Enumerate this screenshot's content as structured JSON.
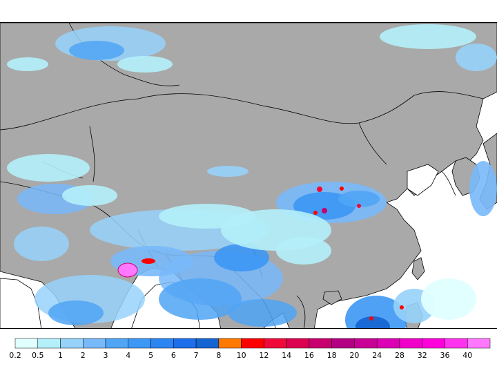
{
  "map": {
    "land_color": "#a9a9a9",
    "ocean_color": "#ffffff",
    "border_color": "#000000"
  },
  "legend": {
    "bins": [
      {
        "label": "0.2",
        "color": "#e0ffff"
      },
      {
        "label": "0.5",
        "color": "#b4f0fa"
      },
      {
        "label": "1",
        "color": "#96d2fa"
      },
      {
        "label": "2",
        "color": "#78b9fa"
      },
      {
        "label": "3",
        "color": "#50a5f5"
      },
      {
        "label": "4",
        "color": "#3c97f5"
      },
      {
        "label": "5",
        "color": "#2c85f0"
      },
      {
        "label": "6",
        "color": "#1e6eeb"
      },
      {
        "label": "7",
        "color": "#1464d2"
      },
      {
        "label": "8",
        "color": "#ff7800"
      },
      {
        "label": "10",
        "color": "#ff0000"
      },
      {
        "label": "12",
        "color": "#f00a3c"
      },
      {
        "label": "14",
        "color": "#dc0050"
      },
      {
        "label": "16",
        "color": "#c8006e"
      },
      {
        "label": "18",
        "color": "#b40082"
      },
      {
        "label": "20",
        "color": "#c80096"
      },
      {
        "label": "24",
        "color": "#dc00b4"
      },
      {
        "label": "28",
        "color": "#f000c8"
      },
      {
        "label": "32",
        "color": "#ff00dc"
      },
      {
        "label": "36",
        "color": "#ff32f0"
      },
      {
        "label": "40",
        "color": "#ff78ff"
      }
    ]
  }
}
